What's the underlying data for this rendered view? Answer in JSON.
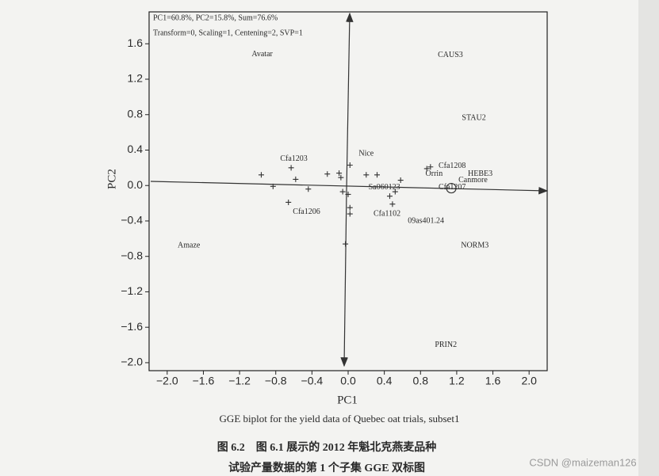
{
  "chart_data": {
    "type": "scatter",
    "annotations": [
      "PC1=60.8%, PC2=15.8%, Sum=76.6%",
      "Transform=0, Scaling=1, Centening=2, SVP=1"
    ],
    "xlabel": "PC1",
    "ylabel": "PC2",
    "caption": "GGE biplot for the yield data of Quebec oat trials, subset1",
    "figure_caption": [
      "图 6.2　图 6.1 展示的 2012 年魁北克燕麦品种",
      "试验产量数据的第 1 个子集 GGE 双标图"
    ],
    "watermark": "CSDN @maizeman126",
    "color": "#333333",
    "xlim": [
      -2.2,
      2.2
    ],
    "ylim": [
      -2.09,
      1.96
    ],
    "xticks": [
      {
        "value": -2.0,
        "label": "−2.0"
      },
      {
        "value": -1.6,
        "label": "−1.6"
      },
      {
        "value": -1.2,
        "label": "−1.2"
      },
      {
        "value": -0.8,
        "label": "−0.8"
      },
      {
        "value": -0.4,
        "label": "−0.4"
      },
      {
        "value": 0,
        "label": "0.0"
      },
      0.4,
      0.8,
      1.2,
      1.6,
      {
        "value": 2,
        "label": "2.0"
      }
    ],
    "yticks": [
      {
        "value": -2.0,
        "label": "−2.0"
      },
      {
        "value": -1.6,
        "label": "−1.6"
      },
      {
        "value": -1.2,
        "label": "−1.2"
      },
      {
        "value": -0.8,
        "label": "−0.8"
      },
      {
        "value": -0.4,
        "label": "−0.4"
      },
      {
        "value": 0,
        "label": "0.0"
      },
      0.4,
      0.8,
      1.2,
      1.6
    ],
    "series": [
      {
        "x": [
          -0.96,
          -0.83,
          -0.63,
          -0.58,
          -0.66,
          -0.44,
          -0.23,
          -0.1,
          -0.08,
          -0.06,
          0.02,
          0.0,
          0.02,
          0.02,
          -0.03,
          0.2,
          0.32,
          0.46,
          0.52,
          0.49,
          0.58,
          0.87,
          0.91
        ],
        "values": [
          0.12,
          -0.01,
          0.2,
          0.07,
          -0.19,
          -0.04,
          0.13,
          0.14,
          0.09,
          -0.07,
          0.23,
          -0.1,
          -0.25,
          -0.32,
          -0.66,
          0.12,
          0.12,
          -0.12,
          -0.07,
          -0.21,
          0.06,
          0.19,
          0.21
        ]
      }
    ],
    "point_labels": [
      {
        "label": "Avatar",
        "x": -0.95,
        "y": 1.48
      },
      {
        "label": "CAUS3",
        "x": 1.13,
        "y": 1.47
      },
      {
        "label": "STAU2",
        "x": 1.39,
        "y": 0.76
      },
      {
        "label": "Nice",
        "x": 0.2,
        "y": 0.36
      },
      {
        "label": "Cfa1203",
        "x": -0.6,
        "y": 0.3
      },
      {
        "label": "Cfa1208",
        "x": 1.15,
        "y": 0.22
      },
      {
        "label": "Orrin",
        "x": 0.95,
        "y": 0.13
      },
      {
        "label": "HEBE3",
        "x": 1.46,
        "y": 0.13
      },
      {
        "label": "Canmore",
        "x": 1.38,
        "y": 0.06
      },
      {
        "label": "Cfa1207",
        "x": 1.15,
        "y": -0.02
      },
      {
        "label": "Sa060123",
        "x": 0.4,
        "y": -0.02
      },
      {
        "label": "Cfa1206",
        "x": -0.46,
        "y": -0.3
      },
      {
        "label": "Cfa1102",
        "x": 0.43,
        "y": -0.32
      },
      {
        "label": "09as401.24",
        "x": 0.86,
        "y": -0.4
      },
      {
        "label": "Amaze",
        "x": -1.76,
        "y": -0.68
      },
      {
        "label": "NORM3",
        "x": 1.4,
        "y": -0.68
      },
      {
        "label": "PRIN2",
        "x": 1.08,
        "y": -1.8
      }
    ],
    "average_environment": {
      "x": 1.14,
      "y": -0.03
    }
  }
}
